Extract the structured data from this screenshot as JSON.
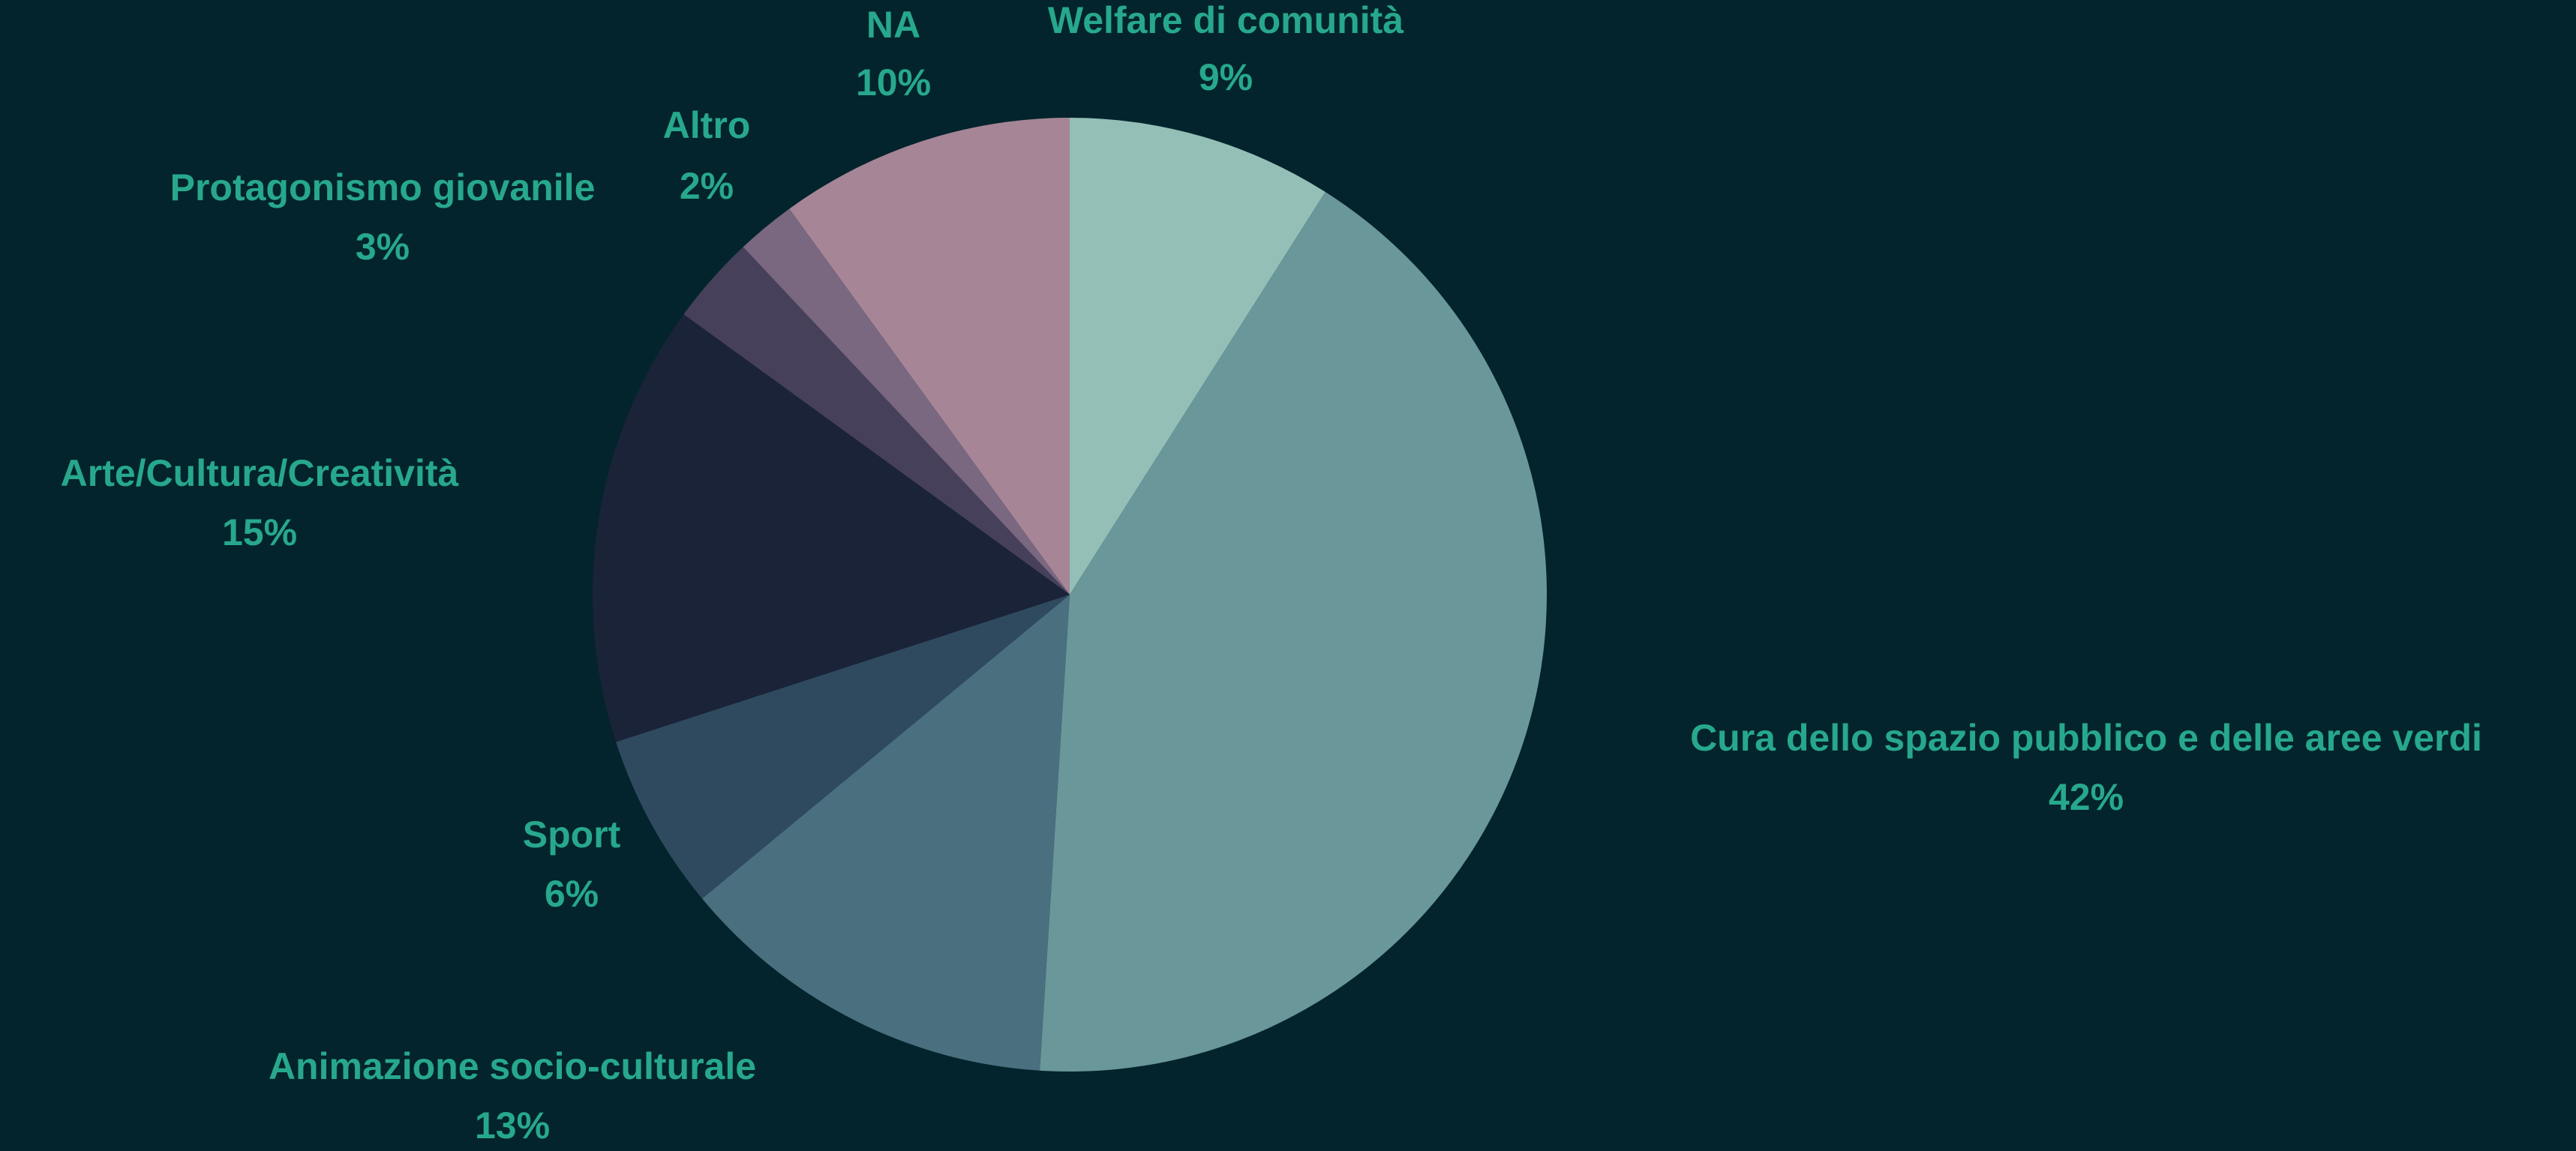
{
  "chart_data": {
    "type": "pie",
    "categories": [
      "Welfare di comunità",
      "Cura dello spazio pubblico e delle aree verdi",
      "Animazione socio-culturale",
      "Sport",
      "Arte/Cultura/Creatività",
      "Protagonismo giovanile",
      "Altro",
      "NA"
    ],
    "values": [
      9,
      42,
      13,
      6,
      15,
      3,
      2,
      10
    ],
    "value_labels": [
      "9%",
      "42%",
      "13%",
      "6%",
      "15%",
      "3%",
      "2%",
      "10%"
    ],
    "colors": [
      "#93bfb7",
      "#6a979a",
      "#4a6f7f",
      "#2f4a5e",
      "#1b2339",
      "#47405a",
      "#7a6780",
      "#a68596"
    ]
  }
}
